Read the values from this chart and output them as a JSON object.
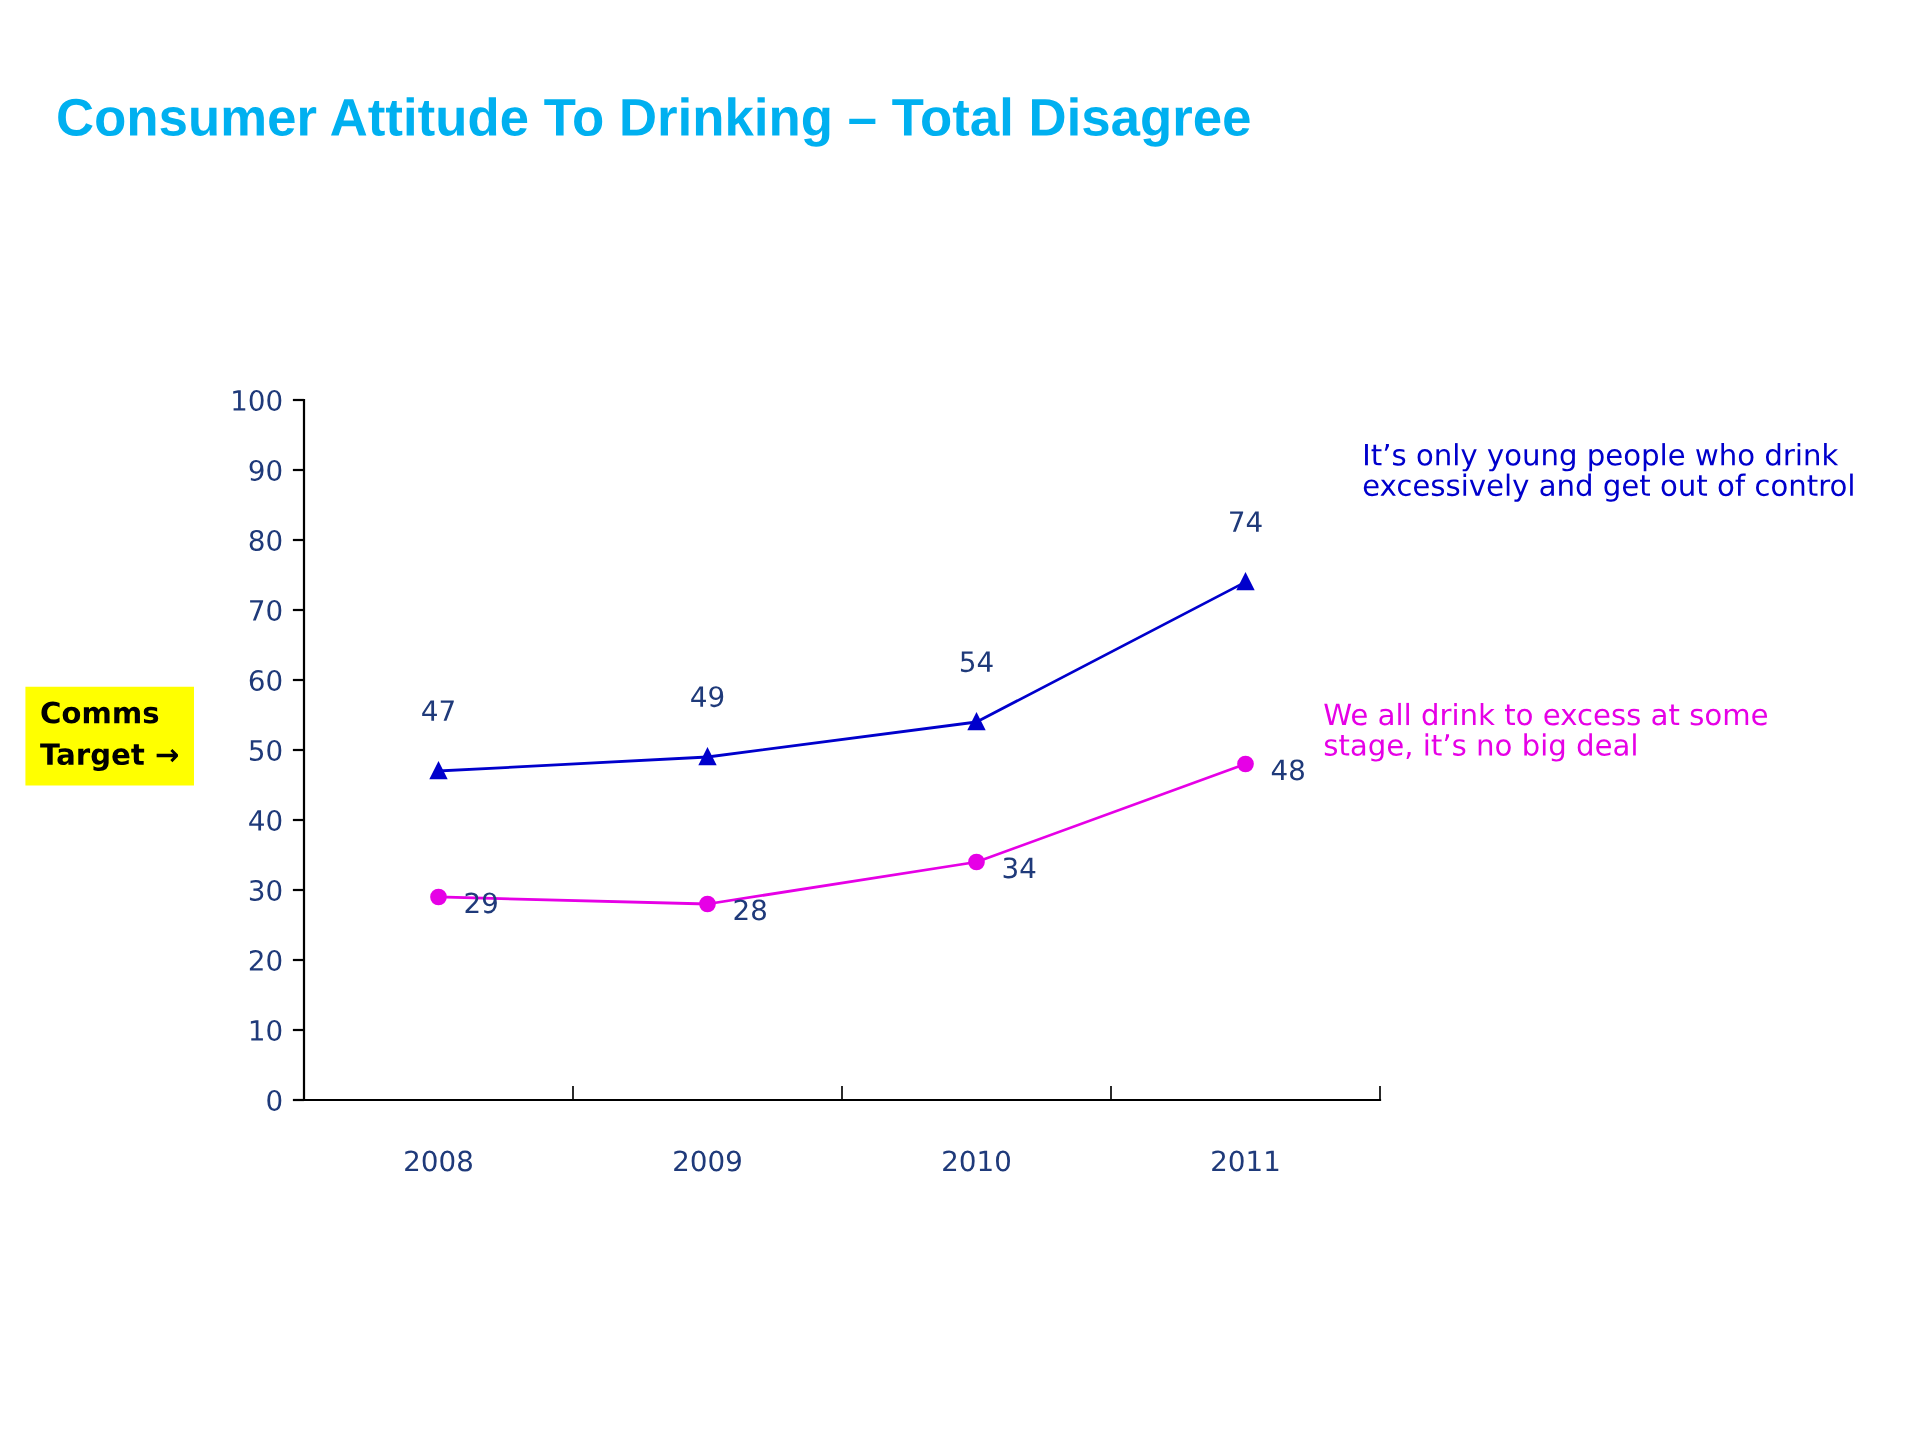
{
  "chart_data": {
    "type": "line",
    "title": "Consumer Attitude To Drinking – Total Disagree",
    "categories": [
      "2008",
      "2009",
      "2010",
      "2011"
    ],
    "series": [
      {
        "name": "It’s only young people who drink\nexcessively and get out of control",
        "color": "#0000cc",
        "values": [
          47,
          49,
          54,
          74
        ],
        "marker": "triangle"
      },
      {
        "name": "We all drink to excess at some\nstage, it’s no big deal",
        "color": "#e600e6",
        "values": [
          29,
          28,
          34,
          48
        ],
        "marker": "circle"
      }
    ],
    "ylim": [
      0,
      100
    ],
    "yticks": [
      0,
      10,
      20,
      30,
      40,
      50,
      60,
      70,
      80,
      90,
      100
    ],
    "annotations": [
      "Comms\nTarget →"
    ],
    "data_labels": true,
    "grid": false,
    "legend": false
  }
}
